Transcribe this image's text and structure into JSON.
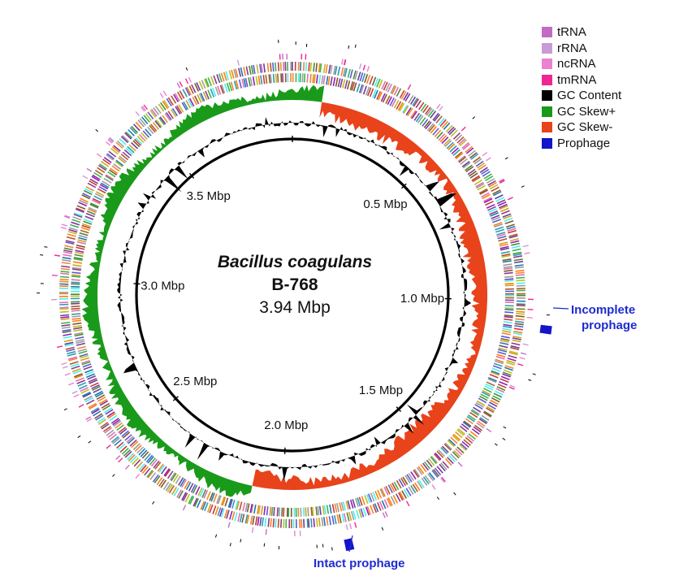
{
  "genome": {
    "name": "Bacillus coagulans",
    "strain": "B-768",
    "size": "3.94 Mbp",
    "size_mbp": 3.94
  },
  "legend": [
    {
      "label": "tRNA",
      "color": "#c36bc4"
    },
    {
      "label": "rRNA",
      "color": "#c89ad6"
    },
    {
      "label": "ncRNA",
      "color": "#ea82cf"
    },
    {
      "label": "tmRNA",
      "color": "#f02596"
    },
    {
      "label": "GC Content",
      "color": "#000000"
    },
    {
      "label": "GC Skew+",
      "color": "#1a9a1a"
    },
    {
      "label": "GC Skew-",
      "color": "#e8431a"
    },
    {
      "label": "Prophage",
      "color": "#1414c8"
    }
  ],
  "ticks": [
    {
      "label": "0.5 Mbp",
      "mbp": 0.5
    },
    {
      "label": "1.0 Mbp",
      "mbp": 1.0
    },
    {
      "label": "1.5 Mbp",
      "mbp": 1.5
    },
    {
      "label": "2.0 Mbp",
      "mbp": 2.0
    },
    {
      "label": "2.5 Mbp",
      "mbp": 2.5
    },
    {
      "label": "3.0 Mbp",
      "mbp": 3.0
    },
    {
      "label": "3.5 Mbp",
      "mbp": 3.5
    }
  ],
  "prophages": [
    {
      "label": "Incomplete prophage",
      "lines": [
        "Incomplete",
        "prophage"
      ],
      "mbp": 1.07
    },
    {
      "label": "Intact prophage",
      "lines": [
        "Intact prophage"
      ],
      "mbp": 1.83
    }
  ],
  "gc_skew": {
    "positive_color": "#1a9a1a",
    "negative_color": "#e8431a",
    "switch_mbp": [
      0.095,
      2.1
    ]
  },
  "feature_colors": [
    "#8b3a8b",
    "#4a8a3a",
    "#d4a020",
    "#5a5ad4",
    "#c43c3c",
    "#2a9ab0",
    "#a0a0a0",
    "#e070b0",
    "#7a5a2a",
    "#3cb44b",
    "#f58231",
    "#911eb4",
    "#46f0f0",
    "#bcbd22",
    "#1f77b4",
    "#ff7f0e",
    "#999999",
    "#6a3d9a",
    "#b15928"
  ]
}
